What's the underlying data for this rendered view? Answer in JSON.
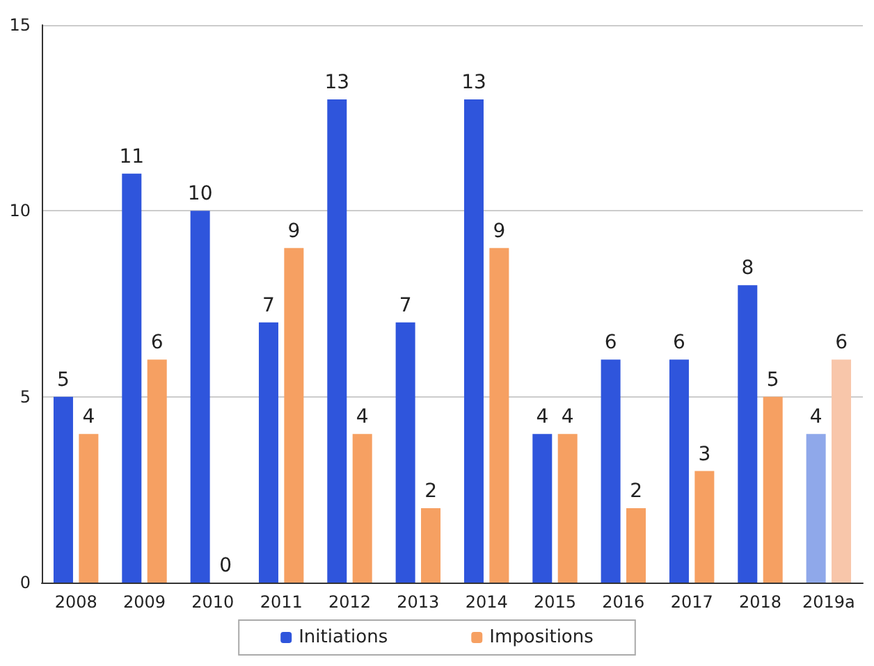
{
  "chart_data": {
    "type": "bar",
    "categories": [
      "2008",
      "2009",
      "2010",
      "2011",
      "2012",
      "2013",
      "2014",
      "2015",
      "2016",
      "2017",
      "2018",
      "2019a"
    ],
    "series": [
      {
        "name": "Initiations",
        "color": "#2f55dc",
        "colors": [
          "#2f55dc",
          "#2f55dc",
          "#2f55dc",
          "#2f55dc",
          "#2f55dc",
          "#2f55dc",
          "#2f55dc",
          "#2f55dc",
          "#2f55dc",
          "#2f55dc",
          "#2f55dc",
          "#8fa8ea"
        ],
        "values": [
          5,
          11,
          10,
          7,
          13,
          7,
          13,
          4,
          6,
          6,
          8,
          4
        ]
      },
      {
        "name": "Impositions",
        "color": "#f6a062",
        "colors": [
          "#f6a062",
          "#f6a062",
          "#f6a062",
          "#f6a062",
          "#f6a062",
          "#f6a062",
          "#f6a062",
          "#f6a062",
          "#f6a062",
          "#f6a062",
          "#f6a062",
          "#f8c6aa"
        ],
        "values": [
          4,
          6,
          0,
          9,
          4,
          2,
          9,
          4,
          2,
          3,
          5,
          6
        ]
      }
    ],
    "ylim": [
      0,
      15
    ],
    "yticks": [
      0,
      5,
      10,
      15
    ],
    "grid": "y",
    "legend": "bottom",
    "data_labels": true
  }
}
